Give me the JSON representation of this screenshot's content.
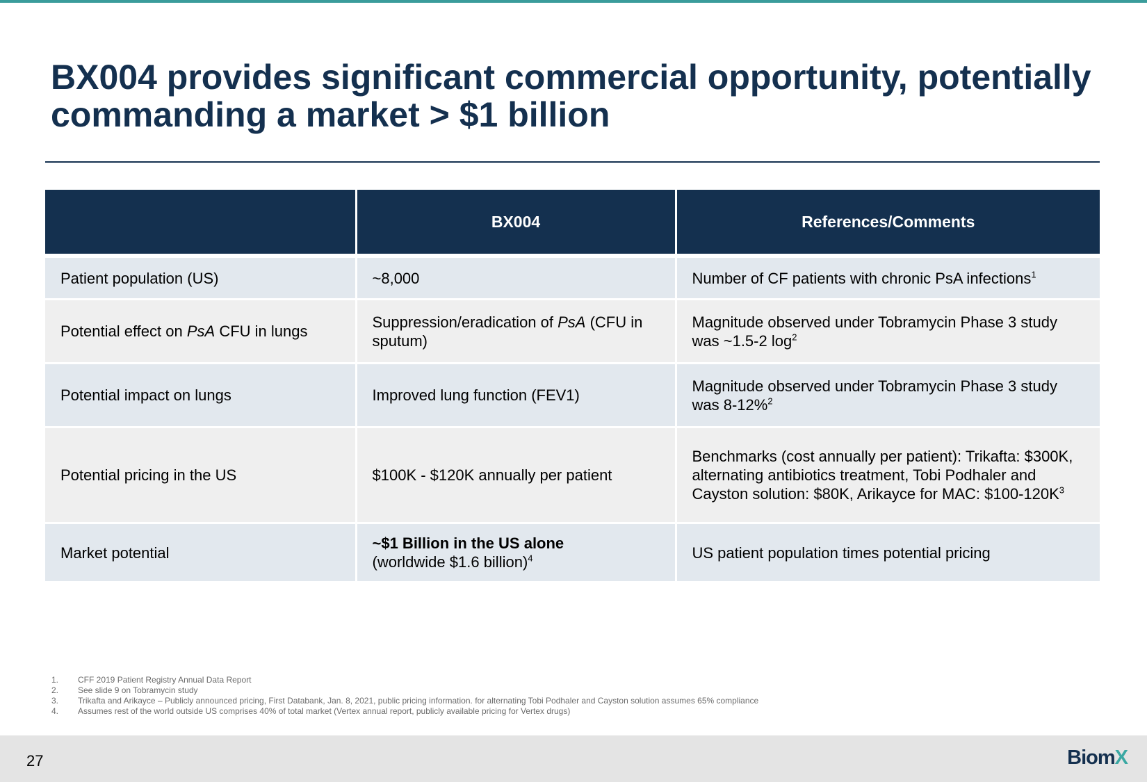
{
  "title": {
    "line1": "BX004 provides significant commercial opportunity, potentially",
    "line2": "commanding a market > $1 billion"
  },
  "table": {
    "headers": [
      "",
      "BX004",
      "References/Comments"
    ],
    "rows": [
      {
        "label": "Patient population (US)",
        "bx004": "~8,000",
        "comment": "Number of CF patients with chronic PsA infections",
        "comment_sup": "1"
      },
      {
        "label_pre": "Potential effect on ",
        "label_italic": "PsA",
        "label_post": " CFU in lungs",
        "bx004_pre": "Suppression/eradication of ",
        "bx004_italic": "PsA",
        "bx004_post": " (CFU in sputum)",
        "comment": "Magnitude observed under Tobramycin Phase 3 study was ~1.5-2 log",
        "comment_sup": "2"
      },
      {
        "label": "Potential impact on lungs",
        "bx004": "Improved lung function (FEV1)",
        "comment": "Magnitude observed under Tobramycin Phase 3 study was 8-12%",
        "comment_sup": "2"
      },
      {
        "label": "Potential pricing in the US",
        "bx004": "$100K - $120K annually per patient",
        "comment": "Benchmarks (cost annually per patient): Trikafta: $300K, alternating antibiotics treatment, Tobi Podhaler and Cayston solution: $80K, Arikayce for MAC: $100-120K",
        "comment_sup": "3"
      },
      {
        "label": "Market potential",
        "bx004_bold": "~$1 Billion in the US alone",
        "bx004_rest": "(worldwide $1.6 billion)",
        "bx004_sup": "4",
        "comment": "US patient population times potential pricing"
      }
    ]
  },
  "footnotes": [
    {
      "num": "1.",
      "text": "CFF 2019 Patient Registry Annual Data Report"
    },
    {
      "num": "2.",
      "text": "See slide 9 on Tobramycin study"
    },
    {
      "num": "3.",
      "text": "Trikafta and Arikayce – Publicly announced pricing, First Databank, Jan. 8, 2021, public pricing information. for alternating Tobi Podhaler and Cayston solution assumes 65% compliance"
    },
    {
      "num": "4.",
      "text": "Assumes rest of the world outside US comprises 40% of total market (Vertex annual report, publicly available pricing for Vertex drugs)"
    }
  ],
  "footer": {
    "page_number": "27",
    "logo_main": "Biom",
    "logo_accent": "X"
  },
  "colors": {
    "navy": "#14304f",
    "teal": "#3a9c9b",
    "row_blue": "#e2e8ee",
    "row_gray": "#efefef",
    "footer_bg": "#e4e4e4"
  }
}
